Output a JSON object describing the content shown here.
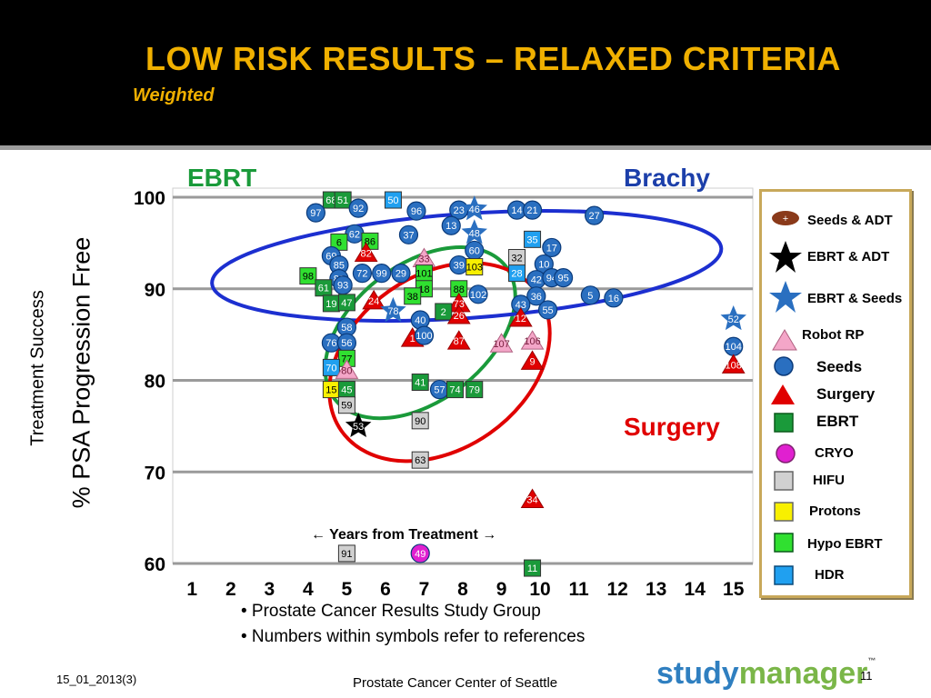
{
  "header": {
    "title": "LOW RISK RESULTS – RELAXED CRITERIA",
    "subtitle": "Weighted"
  },
  "regions": {
    "ebrt": "EBRT",
    "brachy": "Brachy",
    "surgery": "Surgery"
  },
  "y_labels": {
    "line1": "Treatment Success",
    "line2": "% PSA Progression Free"
  },
  "years_label": "← Years from Treatment →",
  "legend": [
    {
      "label": "Seeds & ADT",
      "shape": "football-icon",
      "color": "#8a3a1a"
    },
    {
      "label": "EBRT & ADT",
      "shape": "star-icon",
      "color": "#000000"
    },
    {
      "label": "EBRT & Seeds",
      "shape": "star-icon",
      "color": "#2a6fc0"
    },
    {
      "label": "Robot RP",
      "shape": "triangle-icon",
      "color": "#f4a6c8"
    },
    {
      "label": "Seeds",
      "shape": "circle-icon",
      "color": "#2a6fc0"
    },
    {
      "label": "Surgery",
      "shape": "triangle-icon",
      "color": "#e00000"
    },
    {
      "label": "EBRT",
      "shape": "square-icon",
      "color": "#1a9a3a"
    },
    {
      "label": "CRYO",
      "shape": "circle-icon",
      "color": "#e020d0"
    },
    {
      "label": "HIFU",
      "shape": "square-icon",
      "color": "#d0d0d0"
    },
    {
      "label": "Protons",
      "shape": "square-icon",
      "color": "#f8f000"
    },
    {
      "label": "Hypo EBRT",
      "shape": "square-icon",
      "color": "#30e030"
    },
    {
      "label": "HDR",
      "shape": "square-icon",
      "color": "#20a0f0"
    }
  ],
  "bullets": [
    "• Prostate Cancer Results Study Group",
    "• Numbers within symbols refer to references"
  ],
  "footer": {
    "date": "15_01_2013(3)",
    "credit": "Prostate Cancer Center of Seattle",
    "page": "11",
    "logo_a": "study",
    "logo_b": "manager",
    "logo_tm": "™"
  },
  "chart_data": {
    "type": "scatter",
    "title": "LOW RISK RESULTS – RELAXED CRITERIA",
    "xlabel": "← Years from Treatment →",
    "ylabel": "% PSA Progression Free",
    "xlim": [
      0.5,
      15.5
    ],
    "ylim": [
      60,
      100
    ],
    "x_ticks": [
      1,
      2,
      3,
      4,
      5,
      6,
      7,
      8,
      9,
      10,
      11,
      12,
      13,
      14,
      15
    ],
    "y_ticks": [
      60,
      70,
      80,
      90,
      100
    ],
    "grid": true,
    "colors": {
      "Seeds": "#2a6fc0",
      "EBRT": "#1a9a3a",
      "Surgery": "#e00000",
      "Robot RP": "#f4a6c8",
      "HIFU": "#d0d0d0",
      "Protons": "#f8f000",
      "Hypo EBRT": "#30e030",
      "HDR": "#20a0f0",
      "CRYO": "#e020d0",
      "EBRT & ADT": "#000000",
      "EBRT & Seeds": "#2a6fc0",
      "Seeds & ADT": "#8a3a1a"
    },
    "points": [
      {
        "ref": "68",
        "x": 4.6,
        "y": 99.7,
        "type": "EBRT"
      },
      {
        "ref": "51",
        "x": 4.9,
        "y": 99.7,
        "type": "EBRT"
      },
      {
        "ref": "50",
        "x": 6.2,
        "y": 99.7,
        "type": "HDR"
      },
      {
        "ref": "97",
        "x": 4.2,
        "y": 98.3,
        "type": "Seeds"
      },
      {
        "ref": "92",
        "x": 5.3,
        "y": 98.8,
        "type": "Seeds"
      },
      {
        "ref": "96",
        "x": 6.8,
        "y": 98.5,
        "type": "Seeds"
      },
      {
        "ref": "23",
        "x": 7.9,
        "y": 98.6,
        "type": "Seeds"
      },
      {
        "ref": "46",
        "x": 8.3,
        "y": 98.7,
        "type": "EBRT & Seeds"
      },
      {
        "ref": "14",
        "x": 9.4,
        "y": 98.6,
        "type": "Seeds"
      },
      {
        "ref": "21",
        "x": 9.8,
        "y": 98.6,
        "type": "Seeds"
      },
      {
        "ref": "27",
        "x": 11.4,
        "y": 98.0,
        "type": "Seeds"
      },
      {
        "ref": "13",
        "x": 7.7,
        "y": 96.9,
        "type": "Seeds"
      },
      {
        "ref": "62",
        "x": 5.2,
        "y": 96.0,
        "type": "Seeds"
      },
      {
        "ref": "37",
        "x": 6.6,
        "y": 95.9,
        "type": "Seeds"
      },
      {
        "ref": "48",
        "x": 8.3,
        "y": 96.1,
        "type": "EBRT & Seeds"
      },
      {
        "ref": "6",
        "x": 4.8,
        "y": 95.1,
        "type": "Hypo EBRT"
      },
      {
        "ref": "86",
        "x": 5.6,
        "y": 95.2,
        "type": "Hypo EBRT"
      },
      {
        "ref": "35",
        "x": 9.8,
        "y": 95.4,
        "type": "HDR"
      },
      {
        "ref": "60",
        "x": 8.3,
        "y": 94.2,
        "type": "Seeds"
      },
      {
        "ref": "69",
        "x": 4.6,
        "y": 93.6,
        "type": "Seeds"
      },
      {
        "ref": "82",
        "x": 5.5,
        "y": 93.9,
        "type": "Surgery"
      },
      {
        "ref": "33",
        "x": 7.0,
        "y": 93.3,
        "type": "Robot RP"
      },
      {
        "ref": "32",
        "x": 9.4,
        "y": 93.4,
        "type": "HIFU"
      },
      {
        "ref": "17",
        "x": 10.3,
        "y": 94.5,
        "type": "Seeds"
      },
      {
        "ref": "39",
        "x": 7.9,
        "y": 92.6,
        "type": "Seeds"
      },
      {
        "ref": "103",
        "x": 8.3,
        "y": 92.4,
        "type": "Protons"
      },
      {
        "ref": "10",
        "x": 10.1,
        "y": 92.7,
        "type": "Seeds"
      },
      {
        "ref": "85",
        "x": 4.8,
        "y": 92.6,
        "type": "Seeds"
      },
      {
        "ref": "98",
        "x": 4.0,
        "y": 91.4,
        "type": "Hypo EBRT"
      },
      {
        "ref": "89",
        "x": 4.8,
        "y": 91.1,
        "type": "Seeds"
      },
      {
        "ref": "72",
        "x": 5.4,
        "y": 91.7,
        "type": "Seeds"
      },
      {
        "ref": "99",
        "x": 5.9,
        "y": 91.7,
        "type": "Seeds"
      },
      {
        "ref": "29",
        "x": 6.4,
        "y": 91.7,
        "type": "Seeds"
      },
      {
        "ref": "101",
        "x": 7.0,
        "y": 91.7,
        "type": "Hypo EBRT"
      },
      {
        "ref": "28",
        "x": 9.4,
        "y": 91.7,
        "type": "HDR"
      },
      {
        "ref": "42",
        "x": 9.9,
        "y": 91.0,
        "type": "Seeds"
      },
      {
        "ref": "94",
        "x": 10.3,
        "y": 91.2,
        "type": "Seeds"
      },
      {
        "ref": "95",
        "x": 10.6,
        "y": 91.2,
        "type": "Seeds"
      },
      {
        "ref": "61",
        "x": 4.4,
        "y": 90.1,
        "type": "EBRT"
      },
      {
        "ref": "93",
        "x": 4.9,
        "y": 90.4,
        "type": "Seeds"
      },
      {
        "ref": "18",
        "x": 7.0,
        "y": 90.0,
        "type": "Hypo EBRT"
      },
      {
        "ref": "88",
        "x": 7.9,
        "y": 90.0,
        "type": "Hypo EBRT"
      },
      {
        "ref": "5",
        "x": 11.3,
        "y": 89.3,
        "type": "Seeds"
      },
      {
        "ref": "16",
        "x": 11.9,
        "y": 89.0,
        "type": "Seeds"
      },
      {
        "ref": "38",
        "x": 6.7,
        "y": 89.2,
        "type": "Hypo EBRT"
      },
      {
        "ref": "102",
        "x": 8.4,
        "y": 89.4,
        "type": "Seeds"
      },
      {
        "ref": "36",
        "x": 9.9,
        "y": 89.2,
        "type": "Seeds"
      },
      {
        "ref": "24",
        "x": 5.7,
        "y": 88.7,
        "type": "Surgery"
      },
      {
        "ref": "19",
        "x": 4.6,
        "y": 88.4,
        "type": "EBRT"
      },
      {
        "ref": "47",
        "x": 5.0,
        "y": 88.5,
        "type": "EBRT"
      },
      {
        "ref": "73",
        "x": 7.9,
        "y": 88.4,
        "type": "Surgery"
      },
      {
        "ref": "43",
        "x": 9.5,
        "y": 88.3,
        "type": "Seeds"
      },
      {
        "ref": "78",
        "x": 6.2,
        "y": 87.6,
        "type": "EBRT & Seeds"
      },
      {
        "ref": "2",
        "x": 7.5,
        "y": 87.5,
        "type": "EBRT"
      },
      {
        "ref": "26",
        "x": 7.9,
        "y": 87.1,
        "type": "Surgery"
      },
      {
        "ref": "55",
        "x": 10.2,
        "y": 87.7,
        "type": "Seeds"
      },
      {
        "ref": "12",
        "x": 9.5,
        "y": 86.8,
        "type": "Surgery"
      },
      {
        "ref": "40",
        "x": 6.9,
        "y": 86.6,
        "type": "Seeds"
      },
      {
        "ref": "52",
        "x": 15.0,
        "y": 86.7,
        "type": "EBRT & Seeds"
      },
      {
        "ref": "58",
        "x": 5.0,
        "y": 85.8,
        "type": "Seeds"
      },
      {
        "ref": "1",
        "x": 6.7,
        "y": 84.6,
        "type": "Surgery"
      },
      {
        "ref": "100",
        "x": 7.0,
        "y": 84.9,
        "type": "Seeds"
      },
      {
        "ref": "87",
        "x": 7.9,
        "y": 84.3,
        "type": "Surgery"
      },
      {
        "ref": "107",
        "x": 9.0,
        "y": 84.0,
        "type": "Robot RP"
      },
      {
        "ref": "106",
        "x": 9.8,
        "y": 84.3,
        "type": "Robot RP"
      },
      {
        "ref": "76",
        "x": 4.6,
        "y": 84.1,
        "type": "Seeds"
      },
      {
        "ref": "56",
        "x": 5.0,
        "y": 84.1,
        "type": "Seeds"
      },
      {
        "ref": "104",
        "x": 15.0,
        "y": 83.7,
        "type": "Seeds"
      },
      {
        "ref": "77",
        "x": 5.0,
        "y": 82.4,
        "type": "Hypo EBRT"
      },
      {
        "ref": "9",
        "x": 9.8,
        "y": 82.1,
        "type": "Surgery"
      },
      {
        "ref": "108",
        "x": 15.0,
        "y": 81.7,
        "type": "Surgery"
      },
      {
        "ref": "70",
        "x": 4.6,
        "y": 81.4,
        "type": "HDR"
      },
      {
        "ref": "80",
        "x": 5.0,
        "y": 81.1,
        "type": "Robot RP"
      },
      {
        "ref": "41",
        "x": 6.9,
        "y": 79.8,
        "type": "EBRT"
      },
      {
        "ref": "15",
        "x": 4.6,
        "y": 79.0,
        "type": "Protons"
      },
      {
        "ref": "45",
        "x": 5.0,
        "y": 79.0,
        "type": "EBRT"
      },
      {
        "ref": "57",
        "x": 7.4,
        "y": 79.0,
        "type": "Seeds"
      },
      {
        "ref": "74",
        "x": 7.8,
        "y": 79.0,
        "type": "EBRT"
      },
      {
        "ref": "79",
        "x": 8.3,
        "y": 79.0,
        "type": "EBRT"
      },
      {
        "ref": "59",
        "x": 5.0,
        "y": 77.3,
        "type": "HIFU"
      },
      {
        "ref": "90",
        "x": 6.9,
        "y": 75.6,
        "type": "HIFU"
      },
      {
        "ref": "53",
        "x": 5.3,
        "y": 75.0,
        "type": "EBRT & ADT"
      },
      {
        "ref": "63",
        "x": 6.9,
        "y": 71.3,
        "type": "HIFU"
      },
      {
        "ref": "34",
        "x": 9.8,
        "y": 67.0,
        "type": "Surgery"
      },
      {
        "ref": "91",
        "x": 5.0,
        "y": 61.1,
        "type": "HIFU"
      },
      {
        "ref": "49",
        "x": 6.9,
        "y": 61.1,
        "type": "CRYO"
      },
      {
        "ref": "11",
        "x": 9.8,
        "y": 59.5,
        "type": "EBRT"
      }
    ],
    "ellipses": [
      {
        "name": "EBRT",
        "cx": 6.9,
        "cy": 85.2,
        "rx": 2.8,
        "ry": 13.5,
        "angle": -38,
        "color": "#1a9a3a"
      },
      {
        "name": "Brachy",
        "cx": 8.1,
        "cy": 92.5,
        "rx": 6.6,
        "ry": 5.7,
        "angle": -4,
        "color": "#1c2fd0"
      },
      {
        "name": "Surgery",
        "cx": 7.4,
        "cy": 82.0,
        "rx": 3.1,
        "ry": 17.3,
        "angle": -35,
        "color": "#e00000"
      }
    ]
  }
}
